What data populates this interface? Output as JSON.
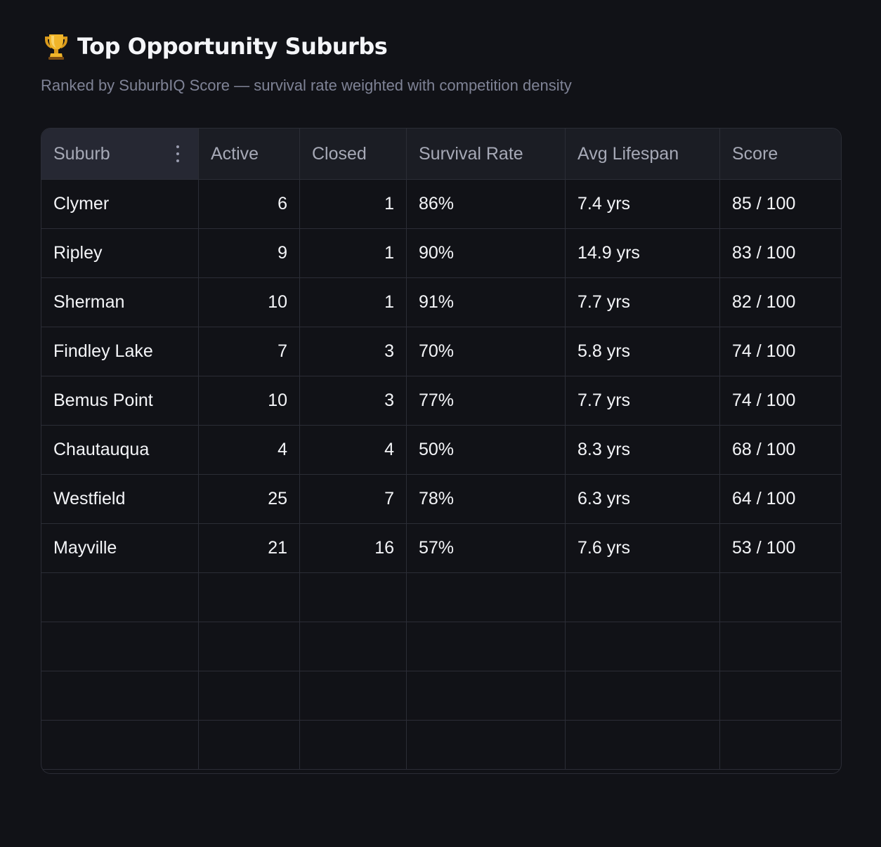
{
  "header": {
    "icon": "trophy-icon",
    "title": "Top Opportunity Suburbs",
    "subtitle": "Ranked by SuburbIQ Score — survival rate weighted with competition density"
  },
  "table": {
    "columns": [
      "Suburb",
      "Active",
      "Closed",
      "Survival Rate",
      "Avg Lifespan",
      "Score"
    ],
    "rows": [
      [
        "Clymer",
        "6",
        "1",
        "86%",
        "7.4 yrs",
        "85 / 100"
      ],
      [
        "Ripley",
        "9",
        "1",
        "90%",
        "14.9 yrs",
        "83 / 100"
      ],
      [
        "Sherman",
        "10",
        "1",
        "91%",
        "7.7 yrs",
        "82 / 100"
      ],
      [
        "Findley Lake",
        "7",
        "3",
        "70%",
        "5.8 yrs",
        "74 / 100"
      ],
      [
        "Bemus Point",
        "10",
        "3",
        "77%",
        "7.7 yrs",
        "74 / 100"
      ],
      [
        "Chautauqua",
        "4",
        "4",
        "50%",
        "8.3 yrs",
        "68 / 100"
      ],
      [
        "Westfield",
        "25",
        "7",
        "78%",
        "6.3 yrs",
        "64 / 100"
      ],
      [
        "Mayville",
        "21",
        "16",
        "57%",
        "7.6 yrs",
        "53 / 100"
      ]
    ],
    "empty_rows": 4
  },
  "colors": {
    "background": "#111217",
    "header_bg": "#1b1d24",
    "grid_line": "#2b2d36",
    "text": "#f4f5f8",
    "muted_text": "#7f8396",
    "trophy_gold": "#e8a825"
  }
}
